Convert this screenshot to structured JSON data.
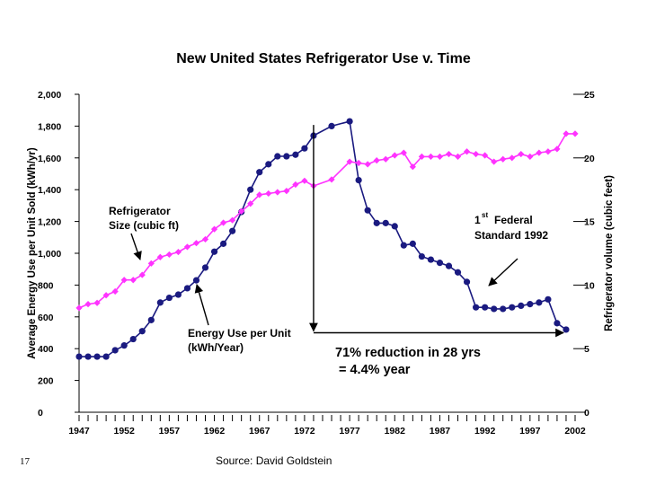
{
  "slide": {
    "number": "17",
    "source": "Source: David Goldstein"
  },
  "chart_data": {
    "type": "line",
    "title": "New United States Refrigerator Use v. Time",
    "ylabel": "Average Energy Use per Unit Sold (kWh/yr)",
    "y2label": "Refrigerator volume (cubic feet)",
    "ylim": [
      0,
      2000
    ],
    "y2lim": [
      0,
      25
    ],
    "xlim": [
      1947,
      2002
    ],
    "y_ticks": [
      "0",
      "200",
      "400",
      "600",
      "800",
      "1,000",
      "1,200",
      "1,400",
      "1,600",
      "1,800",
      "2,000"
    ],
    "y2_ticks": [
      "0",
      "5",
      "10",
      "15",
      "20",
      "25"
    ],
    "x_ticks": [
      "1947",
      "1952",
      "1957",
      "1962",
      "1967",
      "1972",
      "1977",
      "1982",
      "1987",
      "1992",
      "1997",
      "2002"
    ],
    "colors": {
      "energy": "#1a1a80",
      "size": "#ff33ff",
      "arrow": "#000000"
    },
    "series": [
      {
        "key": "energy",
        "axis": "left",
        "x": [
          1947,
          1948,
          1949,
          1950,
          1951,
          1952,
          1953,
          1954,
          1955,
          1956,
          1957,
          1958,
          1959,
          1960,
          1961,
          1962,
          1963,
          1964,
          1965,
          1966,
          1967,
          1968,
          1969,
          1970,
          1971,
          1972,
          1973,
          1975,
          1977,
          1978,
          1979,
          1980,
          1981,
          1982,
          1983,
          1984,
          1985,
          1986,
          1987,
          1988,
          1989,
          1990,
          1991,
          1992,
          1993,
          1994,
          1995,
          1996,
          1997,
          1998,
          1999,
          2000,
          2001
        ],
        "values": [
          350,
          350,
          350,
          350,
          390,
          420,
          460,
          510,
          580,
          690,
          720,
          740,
          780,
          830,
          910,
          1010,
          1060,
          1140,
          1260,
          1400,
          1510,
          1560,
          1610,
          1610,
          1620,
          1660,
          1740,
          1800,
          1830,
          1460,
          1270,
          1190,
          1190,
          1170,
          1050,
          1060,
          980,
          960,
          940,
          920,
          880,
          820,
          660,
          660,
          650,
          650,
          660,
          670,
          680,
          690,
          710,
          560,
          520
        ]
      },
      {
        "key": "size",
        "axis": "right",
        "x": [
          1947,
          1948,
          1949,
          1950,
          1951,
          1952,
          1953,
          1954,
          1955,
          1956,
          1957,
          1958,
          1959,
          1960,
          1961,
          1962,
          1963,
          1964,
          1965,
          1966,
          1967,
          1968,
          1969,
          1970,
          1971,
          1972,
          1973,
          1975,
          1977,
          1978,
          1979,
          1980,
          1981,
          1982,
          1983,
          1984,
          1985,
          1986,
          1987,
          1988,
          1989,
          1990,
          1991,
          1992,
          1993,
          1994,
          1995,
          1996,
          1997,
          1998,
          1999,
          2000,
          2001,
          2002
        ],
        "values": [
          8.2,
          8.5,
          8.6,
          9.2,
          9.5,
          10.4,
          10.4,
          10.8,
          11.7,
          12.2,
          12.4,
          12.6,
          13.0,
          13.3,
          13.6,
          14.4,
          14.9,
          15.1,
          15.8,
          16.4,
          17.1,
          17.2,
          17.3,
          17.4,
          17.9,
          18.2,
          17.8,
          18.3,
          19.7,
          19.6,
          19.5,
          19.8,
          19.9,
          20.2,
          20.4,
          19.3,
          20.1,
          20.1,
          20.1,
          20.3,
          20.1,
          20.5,
          20.3,
          20.2,
          19.7,
          19.9,
          20.0,
          20.3,
          20.1,
          20.4,
          20.5,
          20.7,
          21.9,
          21.9
        ]
      }
    ],
    "annotations": {
      "size_label": [
        "Refrigerator",
        "Size (cubic ft)"
      ],
      "energy_label": [
        "Energy Use per Unit",
        "(kWh/Year)"
      ],
      "standard_sup": "st",
      "standard_main": "1",
      "standard_label": [
        "Federal",
        "Standard 1992"
      ],
      "reduction": [
        "71% reduction in 28 yrs",
        "= 4.4% year"
      ]
    }
  }
}
